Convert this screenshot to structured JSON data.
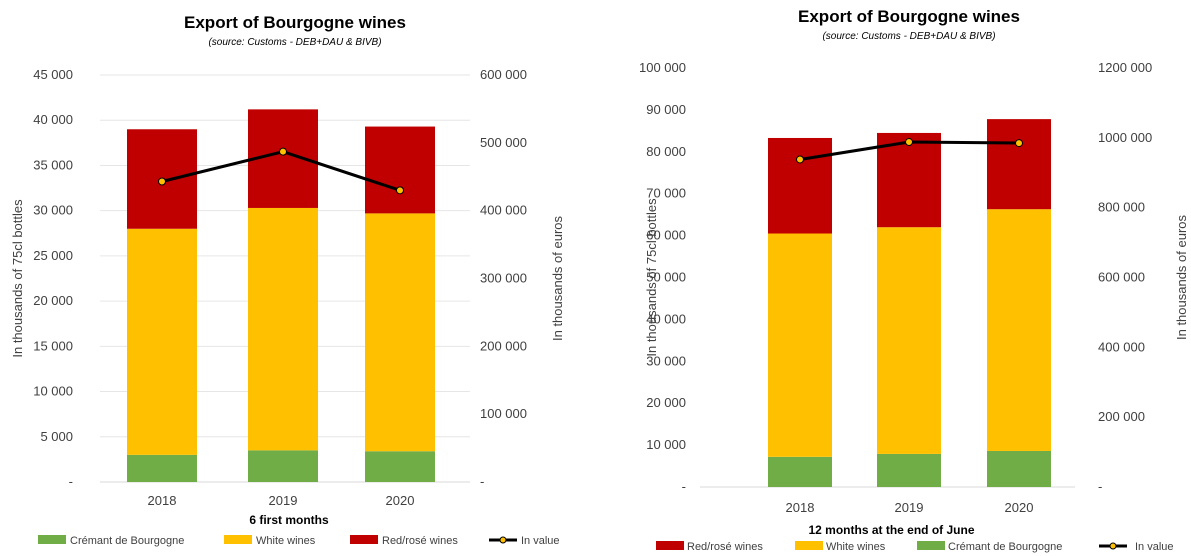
{
  "colors": {
    "cremant": "#70AD47",
    "white": "#FFC000",
    "red": "#C00000",
    "value_line": "#000000",
    "value_marker": "#FFC000",
    "grid": "#E6E6E6",
    "text": "#404040"
  },
  "chart_data": [
    {
      "type": "bar",
      "stacked": true,
      "title": "Export of Bourgogne wines",
      "subtitle": "(source: Customs - DEB+DAU & BIVB)",
      "xlabel": "6 first months",
      "ylabel": "In thousands of 75cl bottles",
      "y2label": "In thousands of euros",
      "categories": [
        "2018",
        "2019",
        "2020"
      ],
      "ylim": [
        0,
        45000
      ],
      "y_ticks": [
        "-",
        "5 000",
        "10 000",
        "15 000",
        "20 000",
        "25 000",
        "30 000",
        "35 000",
        "40 000",
        "45 000"
      ],
      "y2lim": [
        0,
        600000
      ],
      "y2_ticks": [
        "-",
        "100 000",
        "200 000",
        "300 000",
        "400 000",
        "500 000",
        "600 000"
      ],
      "grid": true,
      "legend_position": "bottom",
      "series": [
        {
          "name": "Crémant de Bourgogne",
          "color_key": "cremant",
          "values": [
            3000,
            3500,
            3400
          ]
        },
        {
          "name": "White wines",
          "color_key": "white",
          "values": [
            25000,
            26800,
            26300
          ]
        },
        {
          "name": "Red/rosé wines",
          "color_key": "red",
          "values": [
            11000,
            10900,
            9600
          ]
        }
      ],
      "line_series": {
        "name": "In value",
        "axis": "secondary",
        "values": [
          443000,
          487000,
          430000
        ]
      },
      "legend": [
        "Crémant de Bourgogne",
        "White wines",
        "Red/rosé wines",
        "In value"
      ]
    },
    {
      "type": "bar",
      "stacked": true,
      "title": "Export of Bourgogne wines",
      "subtitle": "(source: Customs - DEB+DAU & BIVB)",
      "xlabel": "12 months at the end of June",
      "ylabel": "In thousands of 75cl bottles",
      "y2label": "In thousands of euros",
      "categories": [
        "2018",
        "2019",
        "2020"
      ],
      "ylim": [
        0,
        100000
      ],
      "y_ticks": [
        "-",
        "10 000",
        "20 000",
        "30 000",
        "40 000",
        "50 000",
        "60 000",
        "70 000",
        "80 000",
        "90 000",
        "100 000"
      ],
      "y2lim": [
        0,
        1200000
      ],
      "y2_ticks": [
        "-",
        "200 000",
        "400 000",
        "600 000",
        "800 000",
        "1000 000",
        "1200 000"
      ],
      "grid": false,
      "legend_position": "bottom",
      "series": [
        {
          "name": "Crémant de Bourgogne",
          "color_key": "cremant",
          "values": [
            7200,
            7900,
            8600
          ]
        },
        {
          "name": "White wines",
          "color_key": "white",
          "values": [
            53300,
            54100,
            57700
          ]
        },
        {
          "name": "Red/rosé wines",
          "color_key": "red",
          "values": [
            22800,
            22500,
            21500
          ]
        }
      ],
      "line_series": {
        "name": "In value",
        "axis": "secondary",
        "values": [
          938000,
          988000,
          985000
        ]
      },
      "legend": [
        "Red/rosé wines",
        "White wines",
        "Crémant de Bourgogne",
        "In value"
      ]
    }
  ]
}
